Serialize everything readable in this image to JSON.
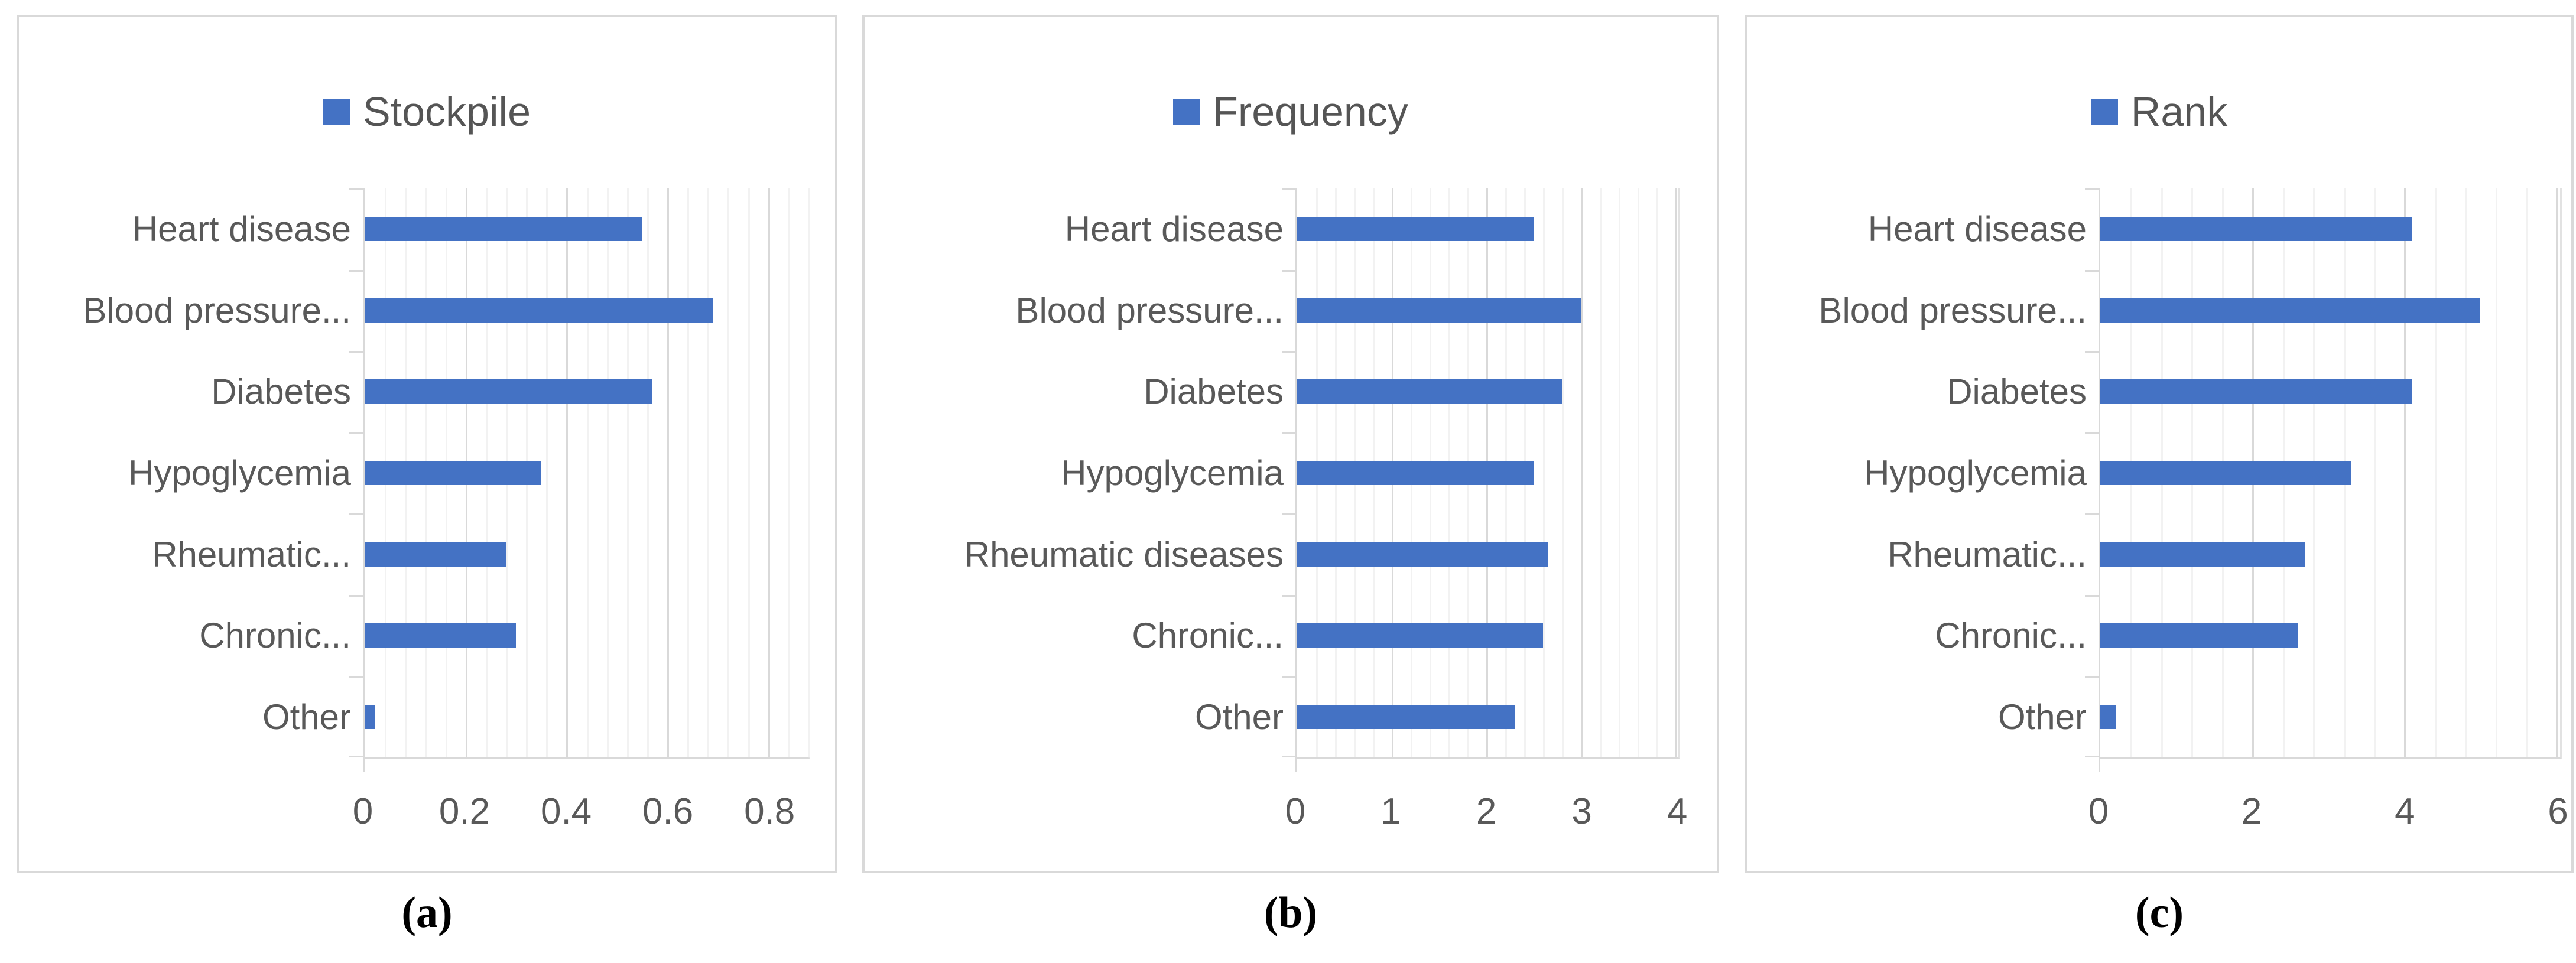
{
  "colors": {
    "bar": "#4472C4",
    "axis_text": "#595959",
    "legend_text": "#555555",
    "grid_minor": "#F2F2F2",
    "grid_major": "#D9D9D9",
    "chart_border": "#D9D9D9",
    "caption_text": "#000000"
  },
  "chart_data": [
    {
      "type": "bar",
      "orientation": "horizontal",
      "legend_label": "Stockpile",
      "legend_position": "top-center",
      "caption": "(a)",
      "categories": [
        "Heart disease",
        "Blood pressure...",
        "Diabetes",
        "Hypoglycemia",
        "Rheumatic...",
        "Chronic...",
        "Other"
      ],
      "values": [
        0.55,
        0.69,
        0.57,
        0.35,
        0.28,
        0.3,
        0.02
      ],
      "tick_values": [
        0,
        0.2,
        0.4,
        0.6,
        0.8
      ],
      "tick_labels": [
        "0",
        "0.2",
        "0.4",
        "0.6",
        "0.8"
      ],
      "xlim": [
        0,
        0.88
      ],
      "minor_unit": 0.04,
      "major_unit": 0.2,
      "grid": true
    },
    {
      "type": "bar",
      "orientation": "horizontal",
      "legend_label": "Frequency",
      "legend_position": "top-center",
      "caption": "(b)",
      "categories": [
        "Heart disease",
        "Blood pressure...",
        "Diabetes",
        "Hypoglycemia",
        "Rheumatic diseases",
        "Chronic...",
        "Other"
      ],
      "values": [
        2.5,
        3.0,
        2.8,
        2.5,
        2.65,
        2.6,
        2.3
      ],
      "tick_values": [
        0,
        1,
        2,
        3,
        4
      ],
      "tick_labels": [
        "0",
        "1",
        "2",
        "3",
        "4"
      ],
      "xlim": [
        0,
        4.03
      ],
      "minor_unit": 0.2,
      "major_unit": 1,
      "grid": true
    },
    {
      "type": "bar",
      "orientation": "horizontal",
      "legend_label": "Rank",
      "legend_position": "top-center",
      "caption": "(c)",
      "categories": [
        "Heart disease",
        "Blood pressure...",
        "Diabetes",
        "Hypoglycemia",
        "Rheumatic...",
        "Chronic...",
        "Other"
      ],
      "values": [
        4.1,
        5.0,
        4.1,
        3.3,
        2.7,
        2.6,
        0.2
      ],
      "tick_values": [
        0,
        2,
        4,
        6
      ],
      "tick_labels": [
        "0",
        "2",
        "4",
        "6"
      ],
      "xlim": [
        0,
        6.05
      ],
      "minor_unit": 0.4,
      "major_unit": 2,
      "grid": true
    }
  ]
}
